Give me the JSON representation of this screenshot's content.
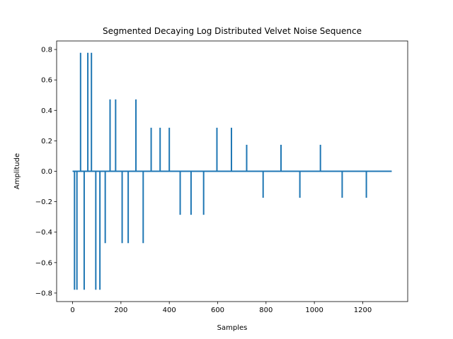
{
  "chart_data": {
    "type": "line",
    "title": "Segmented Decaying Log Distributed Velvet Noise Sequence",
    "xlabel": "Samples",
    "ylabel": "Amplitude",
    "xlim": [
      -66,
      1386
    ],
    "ylim": [
      -0.856,
      0.856
    ],
    "xticks": [
      0,
      200,
      400,
      600,
      800,
      1000,
      1200
    ],
    "yticks": [
      -0.8,
      -0.6,
      -0.4,
      -0.2,
      0.0,
      0.2,
      0.4,
      0.6,
      0.8
    ],
    "ytick_labels": [
      "−0.8",
      "−0.6",
      "−0.4",
      "−0.2",
      "0.0",
      "0.2",
      "0.4",
      "0.6",
      "0.8"
    ],
    "grid": false,
    "color": "#1f77b4",
    "x_range": [
      0,
      1320
    ],
    "impulses": [
      {
        "x": 8,
        "value": -0.778
      },
      {
        "x": 18,
        "value": -0.778
      },
      {
        "x": 33,
        "value": 0.778
      },
      {
        "x": 48,
        "value": -0.778
      },
      {
        "x": 63,
        "value": 0.778
      },
      {
        "x": 78,
        "value": 0.778
      },
      {
        "x": 96,
        "value": -0.778
      },
      {
        "x": 113,
        "value": -0.778
      },
      {
        "x": 135,
        "value": -0.472
      },
      {
        "x": 155,
        "value": 0.472
      },
      {
        "x": 178,
        "value": 0.472
      },
      {
        "x": 205,
        "value": -0.472
      },
      {
        "x": 230,
        "value": -0.472
      },
      {
        "x": 262,
        "value": 0.472
      },
      {
        "x": 292,
        "value": -0.472
      },
      {
        "x": 325,
        "value": 0.286
      },
      {
        "x": 362,
        "value": 0.286
      },
      {
        "x": 400,
        "value": 0.286
      },
      {
        "x": 445,
        "value": -0.286
      },
      {
        "x": 490,
        "value": -0.286
      },
      {
        "x": 542,
        "value": -0.286
      },
      {
        "x": 597,
        "value": 0.286
      },
      {
        "x": 657,
        "value": 0.286
      },
      {
        "x": 720,
        "value": 0.174
      },
      {
        "x": 788,
        "value": -0.174
      },
      {
        "x": 862,
        "value": 0.174
      },
      {
        "x": 940,
        "value": -0.174
      },
      {
        "x": 1025,
        "value": 0.174
      },
      {
        "x": 1115,
        "value": -0.174
      },
      {
        "x": 1215,
        "value": -0.174
      }
    ]
  }
}
